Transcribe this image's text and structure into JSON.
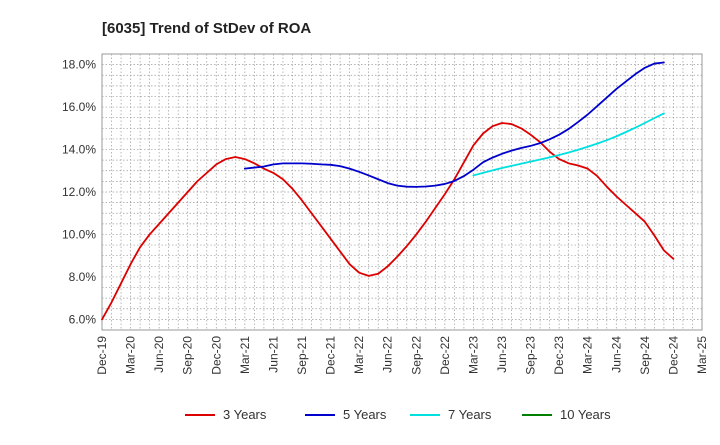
{
  "chart_data": {
    "type": "line",
    "title": "[6035]  Trend of StDev of ROA",
    "xlabel": "",
    "ylabel": "",
    "ylim": [
      5.5,
      18.5
    ],
    "yticks": [
      6.0,
      8.0,
      10.0,
      12.0,
      14.0,
      16.0,
      18.0
    ],
    "ytick_labels": [
      "6.0%",
      "8.0%",
      "10.0%",
      "12.0%",
      "14.0%",
      "16.0%",
      "18.0%"
    ],
    "xticks": [
      "Dec-19",
      "Mar-20",
      "Jun-20",
      "Sep-20",
      "Dec-20",
      "Mar-21",
      "Jun-21",
      "Sep-21",
      "Dec-21",
      "Mar-22",
      "Jun-22",
      "Sep-22",
      "Dec-22",
      "Mar-23",
      "Jun-23",
      "Sep-23",
      "Dec-23",
      "Mar-24",
      "Jun-24",
      "Sep-24",
      "Dec-24",
      "Mar-25"
    ],
    "grid": true,
    "legend_position": "bottom",
    "series": [
      {
        "name": "3 Years",
        "color": "#dd0000",
        "x": [
          0,
          1,
          2,
          3,
          4,
          5,
          6,
          7,
          8,
          9,
          10,
          11,
          12,
          13,
          14,
          15,
          16,
          17,
          18,
          19,
          20,
          21,
          22,
          23,
          24,
          25,
          26,
          27,
          28,
          29,
          30,
          31,
          32,
          33,
          34,
          35,
          36,
          37,
          38,
          39,
          40,
          41,
          42,
          43,
          44,
          45,
          46,
          47,
          48,
          49,
          50,
          51,
          52,
          53,
          54,
          55,
          56,
          57,
          58,
          59,
          60
        ],
        "values": [
          6.0,
          6.8,
          7.7,
          8.6,
          9.4,
          10.0,
          10.5,
          11.0,
          11.5,
          12.0,
          12.5,
          12.9,
          13.3,
          13.55,
          13.65,
          13.55,
          13.35,
          13.1,
          12.9,
          12.6,
          12.15,
          11.6,
          11.0,
          10.4,
          9.8,
          9.2,
          8.6,
          8.2,
          8.05,
          8.15,
          8.5,
          8.95,
          9.45,
          10.0,
          10.6,
          11.25,
          11.9,
          12.6,
          13.4,
          14.2,
          14.75,
          15.1,
          15.25,
          15.2,
          15.0,
          14.7,
          14.35,
          13.9,
          13.55,
          13.35,
          13.25,
          13.1,
          12.75,
          12.25,
          11.8,
          11.4,
          11.0,
          10.6,
          9.95,
          9.25,
          8.85
        ],
        "show_until_index": 59
      },
      {
        "name": "5 Years",
        "color": "#0000cc",
        "x": [
          15,
          16,
          17,
          18,
          19,
          20,
          21,
          22,
          23,
          24,
          25,
          26,
          27,
          28,
          29,
          30,
          31,
          32,
          33,
          34,
          35,
          36,
          37,
          38,
          39,
          40,
          41,
          42,
          43,
          44,
          45,
          46,
          47,
          48,
          49,
          50,
          51,
          52,
          53,
          54,
          55,
          56,
          57,
          58,
          59
        ],
        "values": [
          13.1,
          13.15,
          13.2,
          13.3,
          13.35,
          13.35,
          13.35,
          13.33,
          13.3,
          13.28,
          13.22,
          13.1,
          12.95,
          12.78,
          12.6,
          12.42,
          12.3,
          12.25,
          12.24,
          12.26,
          12.3,
          12.38,
          12.52,
          12.75,
          13.05,
          13.4,
          13.62,
          13.8,
          13.95,
          14.07,
          14.17,
          14.3,
          14.48,
          14.7,
          14.97,
          15.3,
          15.65,
          16.05,
          16.45,
          16.85,
          17.2,
          17.55,
          17.85,
          18.05,
          18.1
        ],
        "show_until_index": 44
      },
      {
        "name": "7 Years",
        "color": "#00e0e0",
        "x": [
          39,
          40,
          41,
          42,
          43,
          44,
          45,
          46,
          47,
          48,
          49,
          50,
          51,
          52,
          53,
          54,
          55,
          56,
          57,
          58,
          59
        ],
        "values": [
          12.78,
          12.9,
          13.02,
          13.13,
          13.23,
          13.33,
          13.43,
          13.53,
          13.63,
          13.74,
          13.86,
          13.99,
          14.13,
          14.28,
          14.44,
          14.62,
          14.82,
          15.03,
          15.25,
          15.48,
          15.7
        ],
        "show_until_index": 20
      },
      {
        "name": "10 Years",
        "color": "#008000",
        "x": [],
        "values": []
      }
    ]
  }
}
